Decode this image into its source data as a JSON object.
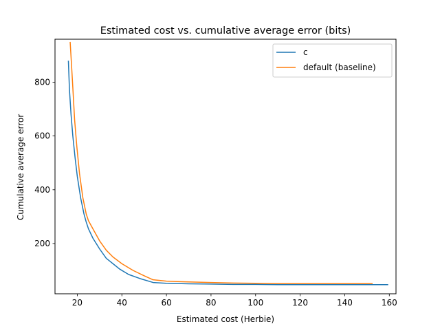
{
  "chart_data": {
    "type": "line",
    "title": "Estimated cost vs. cumulative average error (bits)",
    "xlabel": "Estimated cost (Herbie)",
    "ylabel": "Cumulative average error",
    "xlim": [
      10,
      163
    ],
    "ylim": [
      13,
      960
    ],
    "xticks": [
      20,
      40,
      60,
      80,
      100,
      120,
      140,
      160
    ],
    "yticks": [
      200,
      400,
      600,
      800
    ],
    "grid": false,
    "legend_position": "upper right",
    "series": [
      {
        "name": "c",
        "color": "#1f77b4",
        "x": [
          16,
          16.5,
          17.2,
          18,
          19,
          20,
          21.5,
          23,
          24,
          25,
          27,
          30,
          33,
          36,
          39,
          43,
          48,
          54,
          60,
          70,
          80,
          90,
          100,
          110,
          120,
          130,
          140,
          150,
          159.5
        ],
        "y": [
          880,
          770,
          680,
          600,
          520,
          450,
          370,
          310,
          280,
          255,
          220,
          180,
          145,
          125,
          105,
          85,
          70,
          55,
          52,
          50,
          49,
          48,
          48,
          47,
          47,
          47,
          47,
          47,
          47
        ]
      },
      {
        "name": "default (baseline)",
        "color": "#ff7f0e",
        "x": [
          16.8,
          17.3,
          18,
          18.8,
          19.8,
          21,
          22.5,
          24,
          25,
          27,
          30,
          33,
          36,
          40,
          45,
          50,
          54,
          60,
          70,
          80,
          90,
          100,
          110,
          120,
          130,
          140,
          152.5
        ],
        "y": [
          950,
          880,
          780,
          660,
          560,
          460,
          370,
          310,
          285,
          255,
          210,
          175,
          150,
          125,
          100,
          80,
          65,
          60,
          57,
          55,
          53,
          52,
          51,
          51,
          51,
          51,
          51
        ]
      }
    ]
  }
}
